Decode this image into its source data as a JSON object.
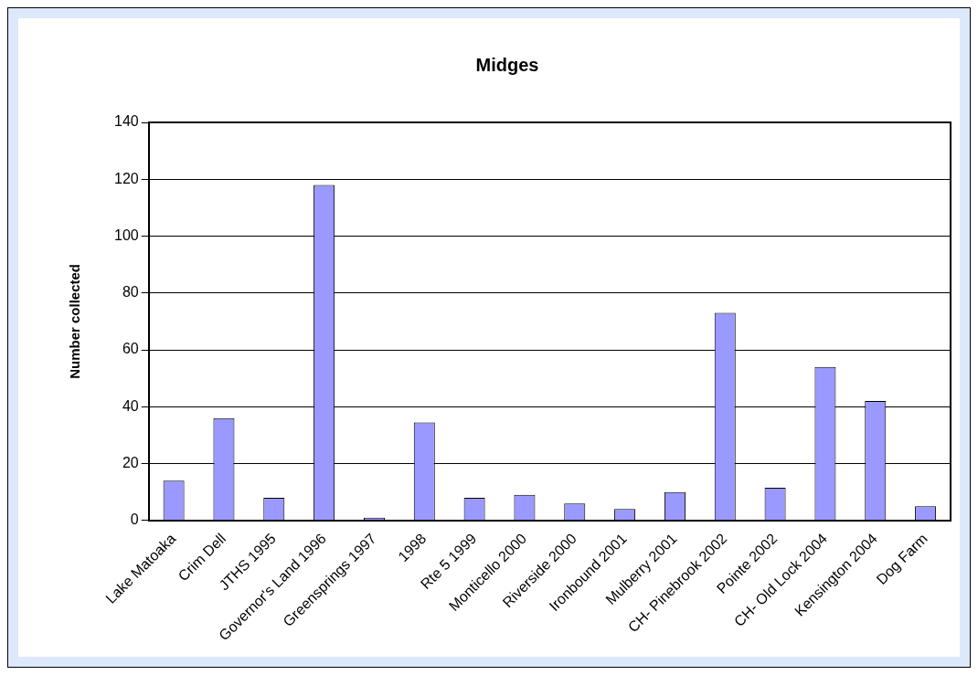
{
  "chart_data": {
    "type": "bar",
    "title": "Midges",
    "ylabel": "Number collected",
    "categories": [
      "Lake Matoaka",
      "Crim Dell",
      "JTHS 1995",
      "Governor's Land 1996",
      "Greensprings 1997",
      "1998",
      "Rte 5 1999",
      "Monticello 2000",
      "Riverside 2000",
      "Ironbound 2001",
      "Mulberry 2001",
      "CH- Pinebrook 2002",
      "Pointe 2002",
      "CH- Old Lock 2004",
      "Kensington 2004",
      "Dog Farm"
    ],
    "values": [
      14,
      36,
      8,
      118,
      1,
      34.5,
      8,
      9,
      6,
      4,
      10,
      73,
      11.5,
      54,
      42,
      5
    ],
    "color": "#9999ff",
    "ylim": [
      0,
      140
    ],
    "yticks": [
      0,
      20,
      40,
      60,
      80,
      100,
      120,
      140
    ],
    "grid": "y",
    "legend": false
  }
}
